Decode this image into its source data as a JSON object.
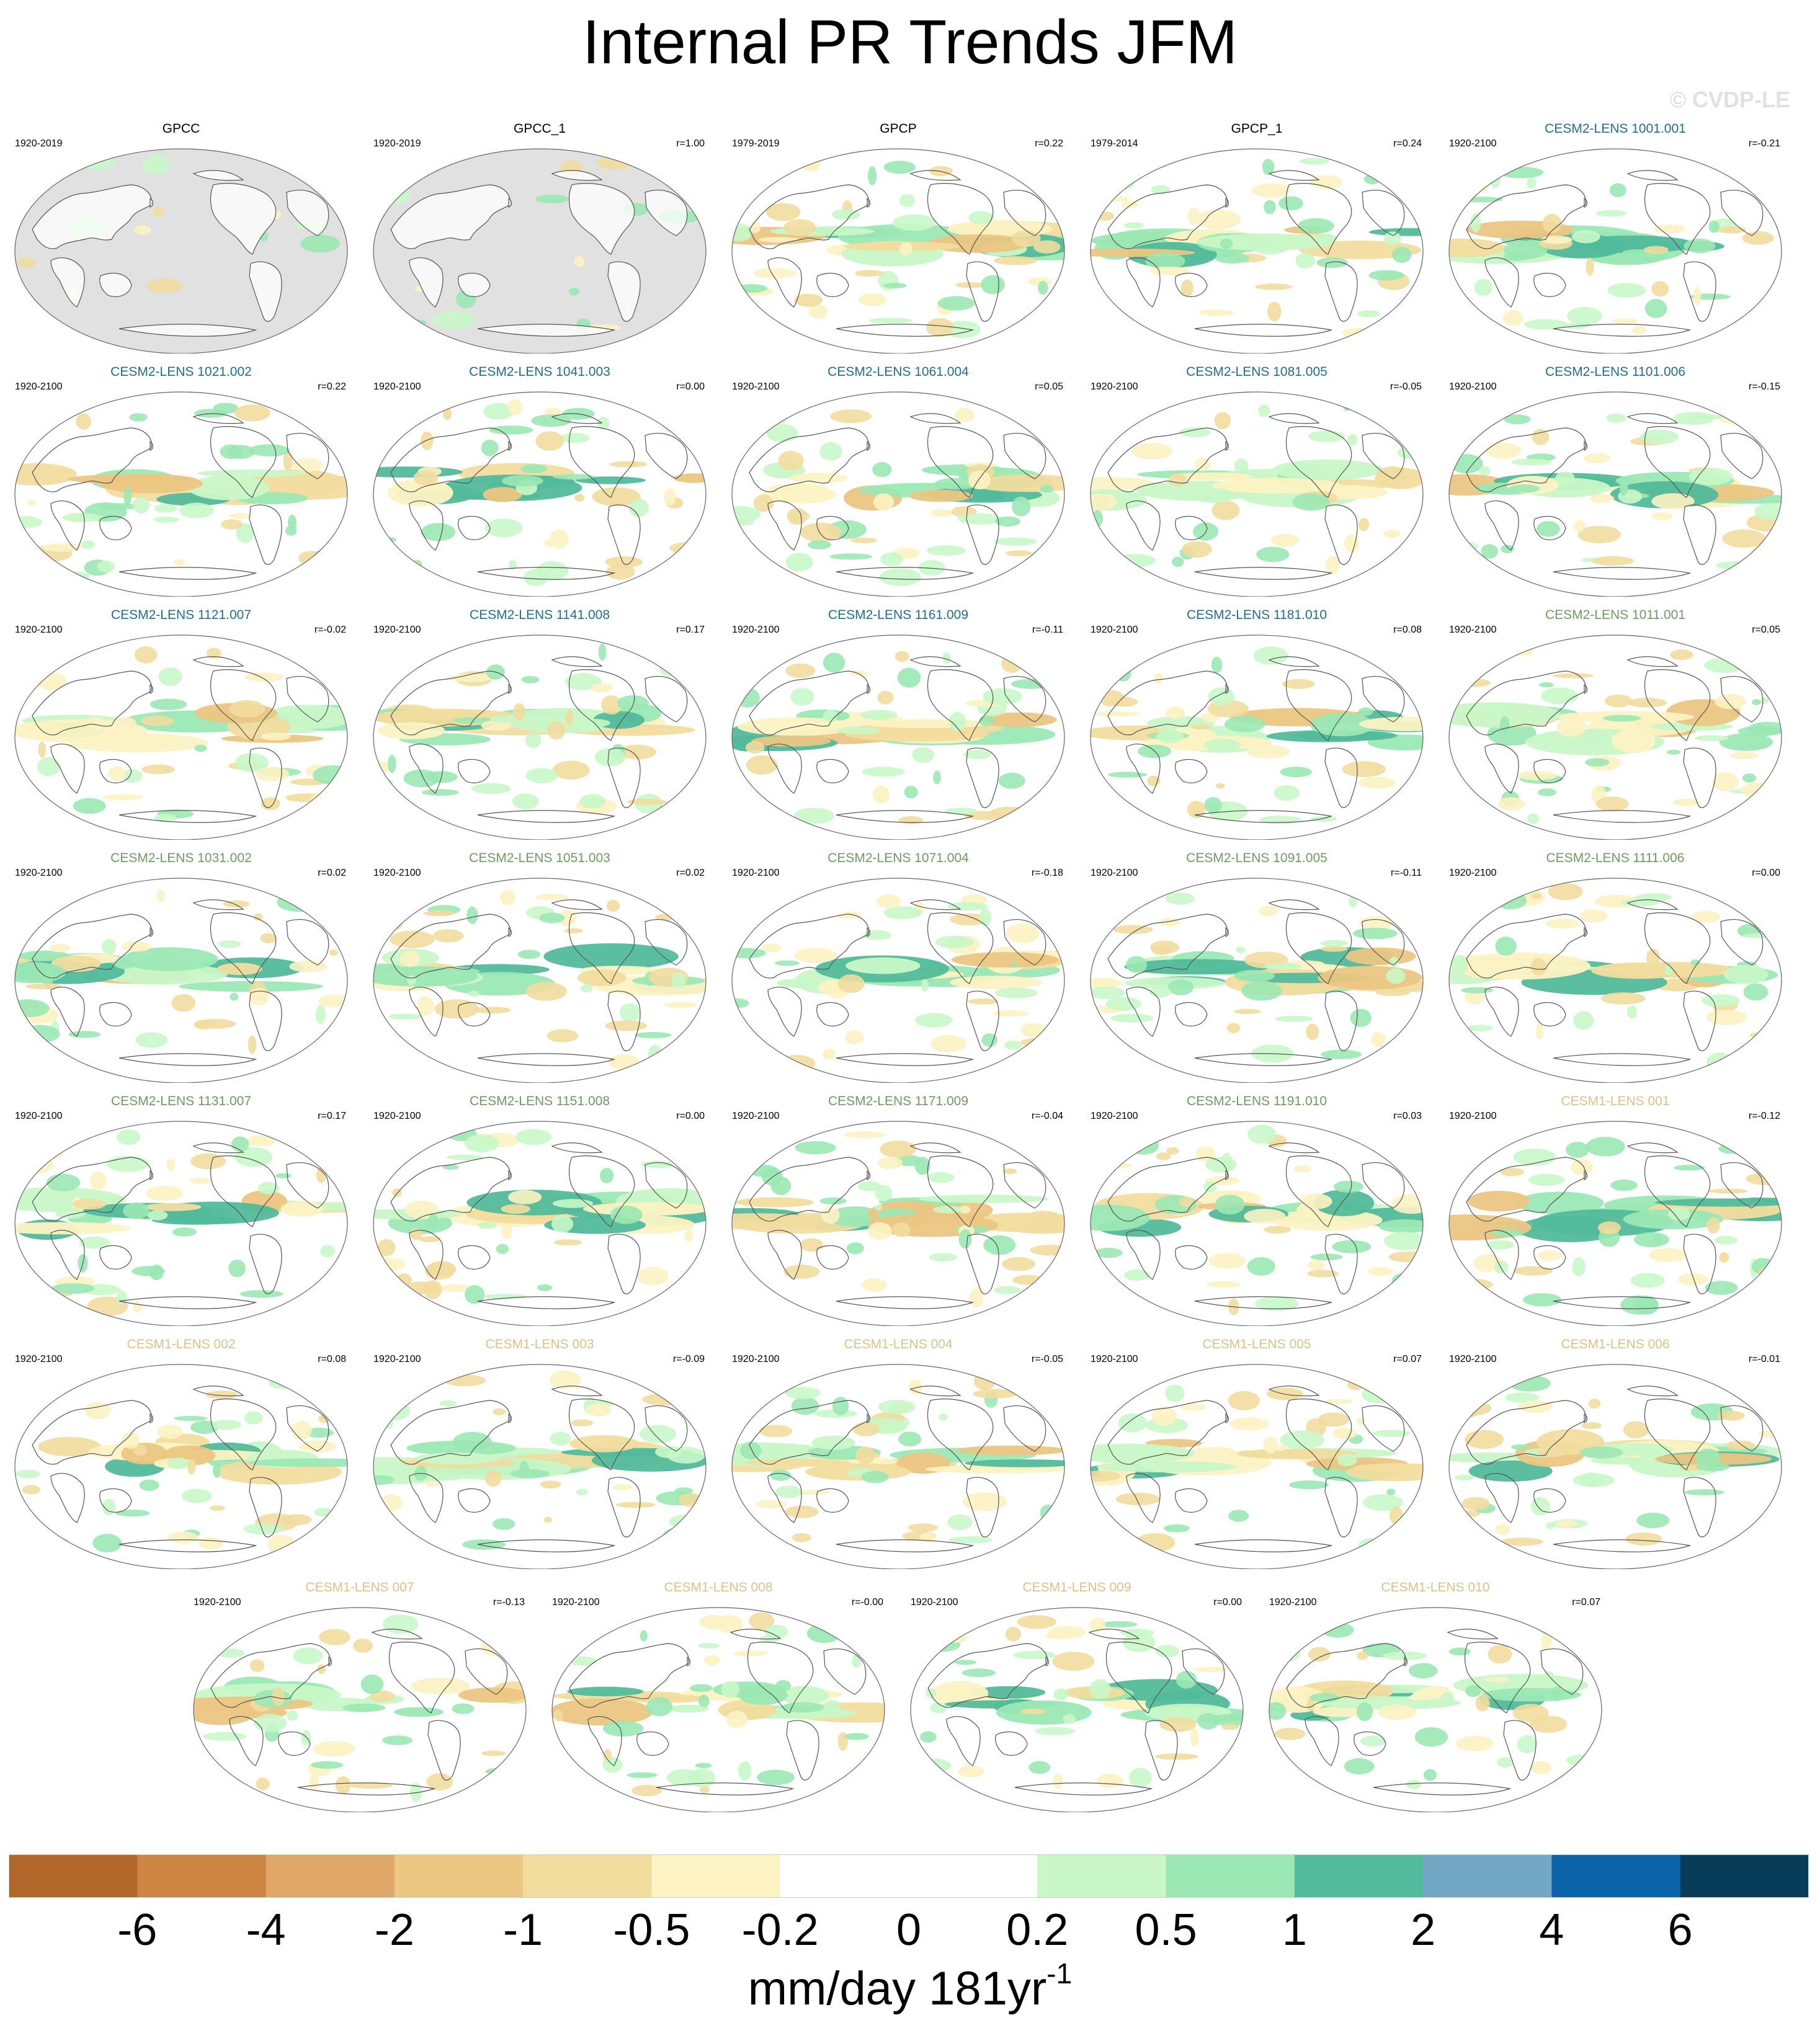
{
  "figure": {
    "title": "Internal PR Trends JFM",
    "watermark": "© CVDP-LE",
    "units_main": "mm/day 181yr",
    "units_sup": "-1"
  },
  "colors": {
    "title_observations": "#000000",
    "title_cesm2_group1": "#1f6f8b",
    "title_cesm2_group2": "#6f9a62",
    "title_cesm1": "#d8c38a",
    "ocean_missing": "#e1e1e1",
    "coastline": "#555555"
  },
  "panels": [
    {
      "title": "GPCC",
      "years": "1920-2019",
      "corr": "",
      "group": "obs",
      "masked": true
    },
    {
      "title": "GPCC_1",
      "years": "1920-2019",
      "corr": "r=1.00",
      "group": "obs",
      "masked": true
    },
    {
      "title": "GPCP",
      "years": "1979-2019",
      "corr": "r=0.22",
      "group": "obs",
      "masked": false
    },
    {
      "title": "GPCP_1",
      "years": "1979-2014",
      "corr": "r=0.24",
      "group": "obs",
      "masked": false
    },
    {
      "title": "CESM2-LENS 1001.001",
      "years": "1920-2100",
      "corr": "r=-0.21",
      "group": "c2a",
      "masked": false
    },
    {
      "title": "CESM2-LENS 1021.002",
      "years": "1920-2100",
      "corr": "r=0.22",
      "group": "c2a",
      "masked": false
    },
    {
      "title": "CESM2-LENS 1041.003",
      "years": "1920-2100",
      "corr": "r=0.00",
      "group": "c2a",
      "masked": false
    },
    {
      "title": "CESM2-LENS 1061.004",
      "years": "1920-2100",
      "corr": "r=0.05",
      "group": "c2a",
      "masked": false
    },
    {
      "title": "CESM2-LENS 1081.005",
      "years": "1920-2100",
      "corr": "r=-0.05",
      "group": "c2a",
      "masked": false
    },
    {
      "title": "CESM2-LENS 1101.006",
      "years": "1920-2100",
      "corr": "r=-0.15",
      "group": "c2a",
      "masked": false
    },
    {
      "title": "CESM2-LENS 1121.007",
      "years": "1920-2100",
      "corr": "r=-0.02",
      "group": "c2a",
      "masked": false
    },
    {
      "title": "CESM2-LENS 1141.008",
      "years": "1920-2100",
      "corr": "r=0.17",
      "group": "c2a",
      "masked": false
    },
    {
      "title": "CESM2-LENS 1161.009",
      "years": "1920-2100",
      "corr": "r=-0.11",
      "group": "c2a",
      "masked": false
    },
    {
      "title": "CESM2-LENS 1181.010",
      "years": "1920-2100",
      "corr": "r=0.08",
      "group": "c2a",
      "masked": false
    },
    {
      "title": "CESM2-LENS 1011.001",
      "years": "1920-2100",
      "corr": "r=0.05",
      "group": "c2b",
      "masked": false
    },
    {
      "title": "CESM2-LENS 1031.002",
      "years": "1920-2100",
      "corr": "r=0.02",
      "group": "c2b",
      "masked": false
    },
    {
      "title": "CESM2-LENS 1051.003",
      "years": "1920-2100",
      "corr": "r=0.02",
      "group": "c2b",
      "masked": false
    },
    {
      "title": "CESM2-LENS 1071.004",
      "years": "1920-2100",
      "corr": "r=-0.18",
      "group": "c2b",
      "masked": false
    },
    {
      "title": "CESM2-LENS 1091.005",
      "years": "1920-2100",
      "corr": "r=-0.11",
      "group": "c2b",
      "masked": false
    },
    {
      "title": "CESM2-LENS 1111.006",
      "years": "1920-2100",
      "corr": "r=0.00",
      "group": "c2b",
      "masked": false
    },
    {
      "title": "CESM2-LENS 1131.007",
      "years": "1920-2100",
      "corr": "r=0.17",
      "group": "c2b",
      "masked": false
    },
    {
      "title": "CESM2-LENS 1151.008",
      "years": "1920-2100",
      "corr": "r=0.00",
      "group": "c2b",
      "masked": false
    },
    {
      "title": "CESM2-LENS 1171.009",
      "years": "1920-2100",
      "corr": "r=-0.04",
      "group": "c2b",
      "masked": false
    },
    {
      "title": "CESM2-LENS 1191.010",
      "years": "1920-2100",
      "corr": "r=0.03",
      "group": "c2b",
      "masked": false
    },
    {
      "title": "CESM1-LENS 001",
      "years": "1920-2100",
      "corr": "r=-0.12",
      "group": "c1",
      "masked": false
    },
    {
      "title": "CESM1-LENS 002",
      "years": "1920-2100",
      "corr": "r=0.08",
      "group": "c1",
      "masked": false
    },
    {
      "title": "CESM1-LENS 003",
      "years": "1920-2100",
      "corr": "r=-0.09",
      "group": "c1",
      "masked": false
    },
    {
      "title": "CESM1-LENS 004",
      "years": "1920-2100",
      "corr": "r=-0.05",
      "group": "c1",
      "masked": false
    },
    {
      "title": "CESM1-LENS 005",
      "years": "1920-2100",
      "corr": "r=0.07",
      "group": "c1",
      "masked": false
    },
    {
      "title": "CESM1-LENS 006",
      "years": "1920-2100",
      "corr": "r=-0.01",
      "group": "c1",
      "masked": false
    },
    {
      "title": "CESM1-LENS 007",
      "years": "1920-2100",
      "corr": "r=-0.13",
      "group": "c1",
      "masked": false
    },
    {
      "title": "CESM1-LENS 008",
      "years": "1920-2100",
      "corr": "r=-0.00",
      "group": "c1",
      "masked": false
    },
    {
      "title": "CESM1-LENS 009",
      "years": "1920-2100",
      "corr": "r=0.00",
      "group": "c1",
      "masked": false
    },
    {
      "title": "CESM1-LENS 010",
      "years": "1920-2100",
      "corr": "r=0.07",
      "group": "c1",
      "masked": false
    }
  ],
  "colorbar": {
    "ticks": [
      "-6",
      "-4",
      "-2",
      "-1",
      "-0.5",
      "-0.2",
      "0",
      "0.2",
      "0.5",
      "1",
      "2",
      "4",
      "6"
    ],
    "colors": [
      "#b2672a",
      "#cc8542",
      "#dfa868",
      "#ecc683",
      "#f2dc9e",
      "#fcf2c3",
      "#ffffff",
      "#ffffff",
      "#c9f7c8",
      "#9be8b4",
      "#52bb9b",
      "#72a8c5",
      "#0b65a8",
      "#083d5a"
    ]
  }
}
